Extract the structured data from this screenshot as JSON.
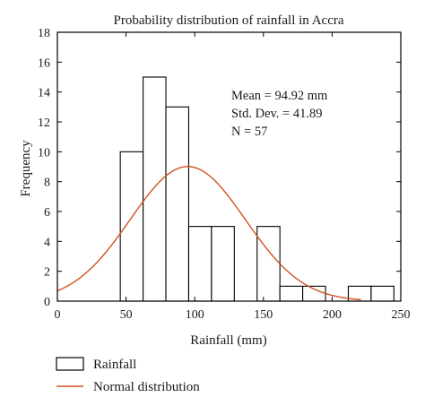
{
  "chart_data": {
    "type": "bar",
    "title": "Probability distribution of rainfall in Accra",
    "xlabel": "Rainfall (mm)",
    "ylabel": "Frequency",
    "xlim": [
      0,
      250
    ],
    "ylim": [
      0,
      18
    ],
    "x_ticks": [
      0,
      50,
      100,
      150,
      200,
      250
    ],
    "y_ticks": [
      0,
      2,
      4,
      6,
      8,
      10,
      12,
      14,
      16,
      18
    ],
    "bin_width": 16.6,
    "bins": [
      {
        "start": 45.8,
        "count": 10
      },
      {
        "start": 62.4,
        "count": 15
      },
      {
        "start": 79.0,
        "count": 13
      },
      {
        "start": 95.6,
        "count": 5
      },
      {
        "start": 112.2,
        "count": 5
      },
      {
        "start": 128.8,
        "count": 0
      },
      {
        "start": 145.4,
        "count": 5
      },
      {
        "start": 162.0,
        "count": 1
      },
      {
        "start": 178.6,
        "count": 1
      },
      {
        "start": 195.2,
        "count": 0
      },
      {
        "start": 211.8,
        "count": 1
      },
      {
        "start": 228.4,
        "count": 1
      }
    ],
    "normal_fit": {
      "mean": 94.92,
      "sd": 41.89,
      "n": 57
    },
    "annotations": [
      "Mean = 94.92 mm",
      "Std. Dev. = 41.89",
      "N = 57"
    ],
    "legend": {
      "position": "below-left",
      "entries": [
        {
          "label": "Rainfall",
          "kind": "bar"
        },
        {
          "label": "Normal distribution",
          "kind": "line"
        }
      ]
    },
    "grid": false,
    "colors": {
      "bars_fill": "#ffffff",
      "bars_stroke": "#000000",
      "curve": "#d0521e"
    }
  }
}
